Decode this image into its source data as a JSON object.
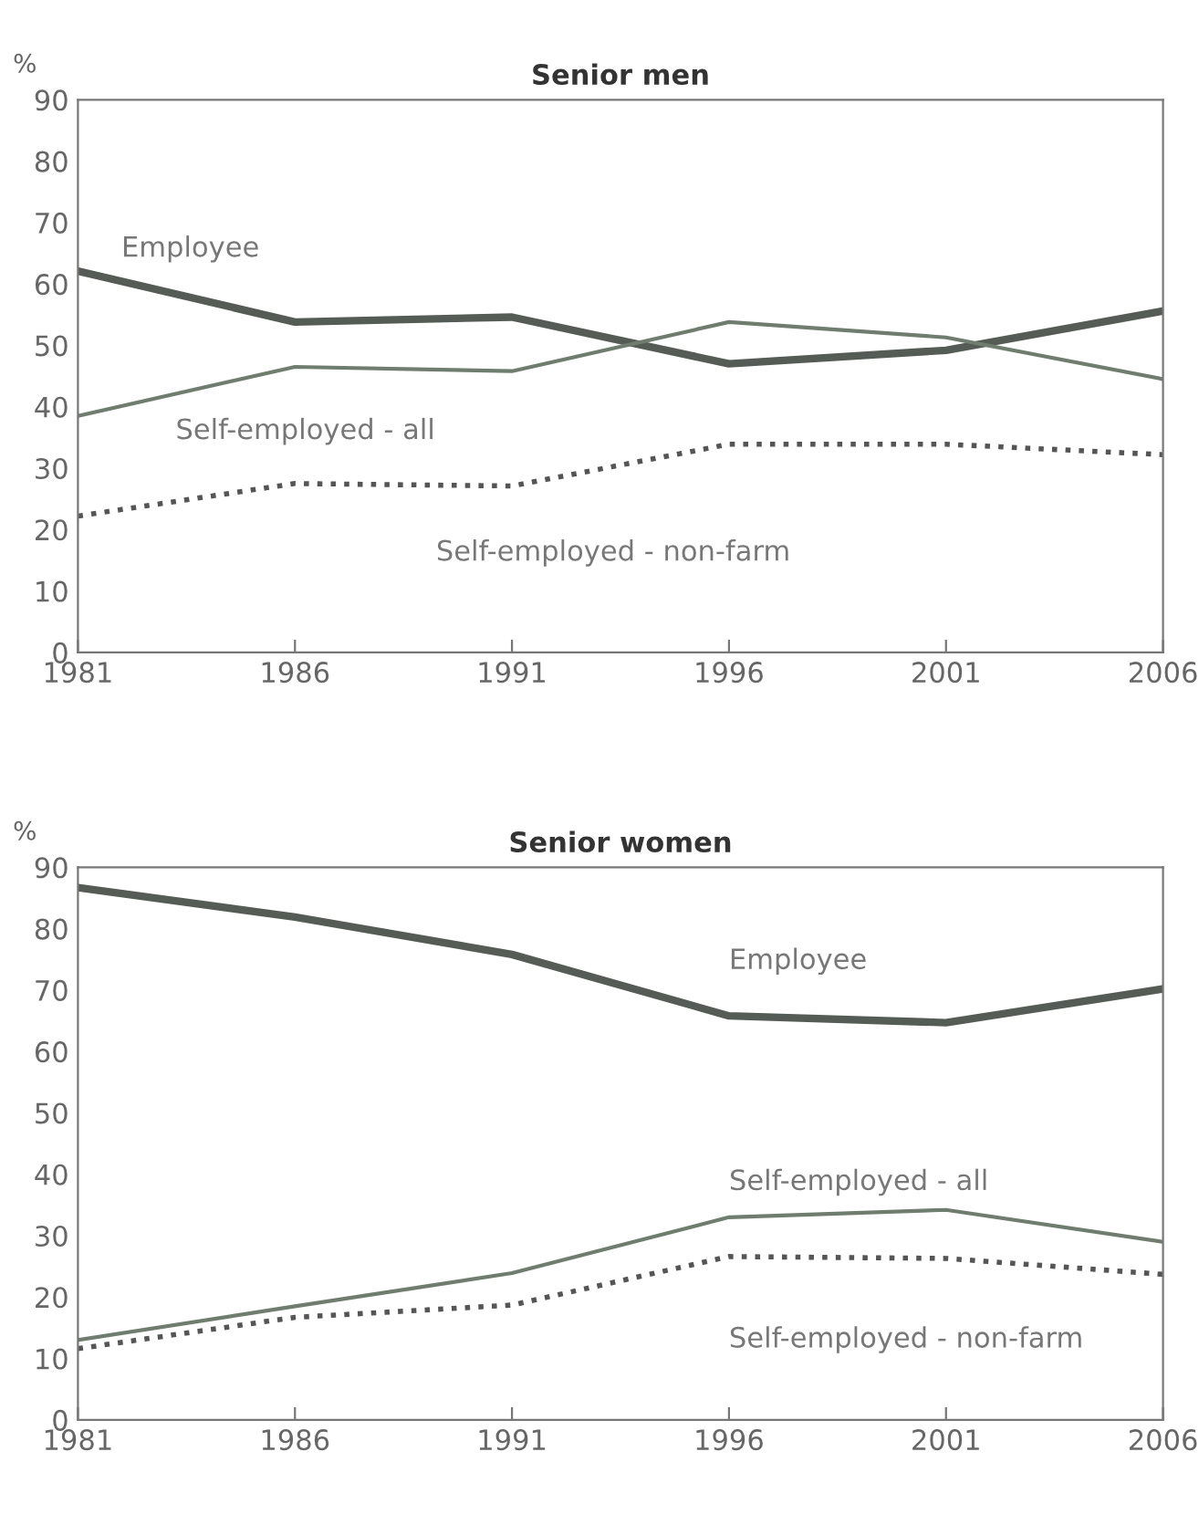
{
  "chart_data": [
    {
      "type": "line",
      "title": "Senior men",
      "ylabel": "%",
      "x": [
        1981,
        1986,
        1991,
        1996,
        2001,
        2006
      ],
      "xlim": [
        1981,
        2006
      ],
      "xticks": [
        1981,
        1986,
        1991,
        1996,
        2001,
        2006
      ],
      "ylim": [
        0,
        90
      ],
      "yticks": [
        0,
        10,
        20,
        30,
        40,
        50,
        60,
        70,
        80,
        90
      ],
      "grid": false,
      "legend": false,
      "marker": "none",
      "series": [
        {
          "name": "Employee",
          "color": "#555b55",
          "line_style": "solid",
          "values": [
            62.1,
            53.8,
            54.6,
            47.0,
            49.2,
            55.6
          ]
        },
        {
          "name": "Self-employed - all",
          "color": "#6f7d6f",
          "line_style": "solid",
          "values": [
            38.5,
            46.5,
            45.8,
            53.8,
            51.3,
            44.5
          ]
        },
        {
          "name": "Self-employed - non-farm",
          "color": "#555555",
          "line_style": "dotted",
          "values": [
            22.2,
            27.5,
            27.1,
            33.9,
            33.9,
            32.2
          ]
        }
      ]
    },
    {
      "type": "line",
      "title": "Senior women",
      "ylabel": "%",
      "x": [
        1981,
        1986,
        1991,
        1996,
        2001,
        2006
      ],
      "xlim": [
        1981,
        2006
      ],
      "xticks": [
        1981,
        1986,
        1991,
        1996,
        2001,
        2006
      ],
      "ylim": [
        0,
        90
      ],
      "yticks": [
        0,
        10,
        20,
        30,
        40,
        50,
        60,
        70,
        80,
        90
      ],
      "grid": false,
      "legend": false,
      "marker": "none",
      "series": [
        {
          "name": "Employee",
          "color": "#555b55",
          "line_style": "solid",
          "values": [
            86.7,
            81.9,
            75.8,
            65.8,
            64.7,
            70.2
          ]
        },
        {
          "name": "Self-employed - all",
          "color": "#6f7d6f",
          "line_style": "solid",
          "values": [
            13.0,
            18.5,
            23.9,
            33.0,
            34.2,
            29.0
          ]
        },
        {
          "name": "Self-employed - non-farm",
          "color": "#555555",
          "line_style": "dotted",
          "values": [
            11.6,
            16.7,
            18.7,
            26.6,
            26.3,
            23.7
          ]
        }
      ]
    }
  ]
}
